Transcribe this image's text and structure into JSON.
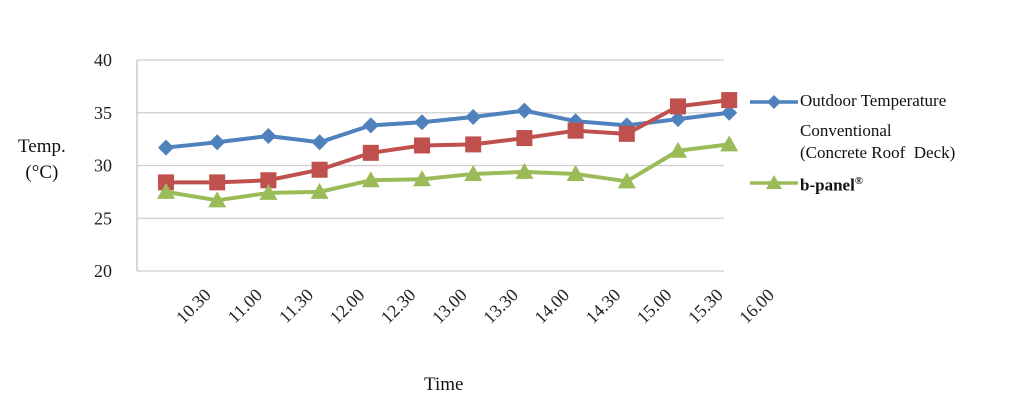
{
  "chart_data": {
    "type": "line",
    "xlabel": "Time",
    "ylabel_line1": "Temp.",
    "ylabel_line2": "(°C)",
    "ylim": [
      20,
      40
    ],
    "yticks": [
      20,
      25,
      30,
      35,
      40
    ],
    "grid": "horizontal",
    "legend_position": "right",
    "categories": [
      "10.30",
      "11.00",
      "11.30",
      "12.00",
      "12.30",
      "13.00",
      "13.30",
      "14.00",
      "14.30",
      "15.00",
      "15.30",
      "16.00"
    ],
    "series": [
      {
        "name": "Outdoor Temperature",
        "color": "#4f81bd",
        "marker": "diamond",
        "values": [
          31.7,
          32.2,
          32.8,
          32.2,
          33.8,
          34.1,
          34.6,
          35.2,
          34.2,
          33.8,
          34.4,
          35.0
        ]
      },
      {
        "name_line1": "Conventional",
        "name_line2": "(Concrete Roof  Deck)",
        "color": "#c0504d",
        "marker": "square",
        "values": [
          28.4,
          28.4,
          28.6,
          29.6,
          31.2,
          31.9,
          32.0,
          32.6,
          33.3,
          33.0,
          35.6,
          36.2
        ]
      },
      {
        "name": "b-panel",
        "name_sup": "®",
        "color": "#9bbb59",
        "marker": "triangle",
        "values": [
          27.5,
          26.7,
          27.4,
          27.5,
          28.6,
          28.7,
          29.2,
          29.4,
          29.2,
          28.5,
          31.4,
          32.0
        ]
      }
    ]
  }
}
